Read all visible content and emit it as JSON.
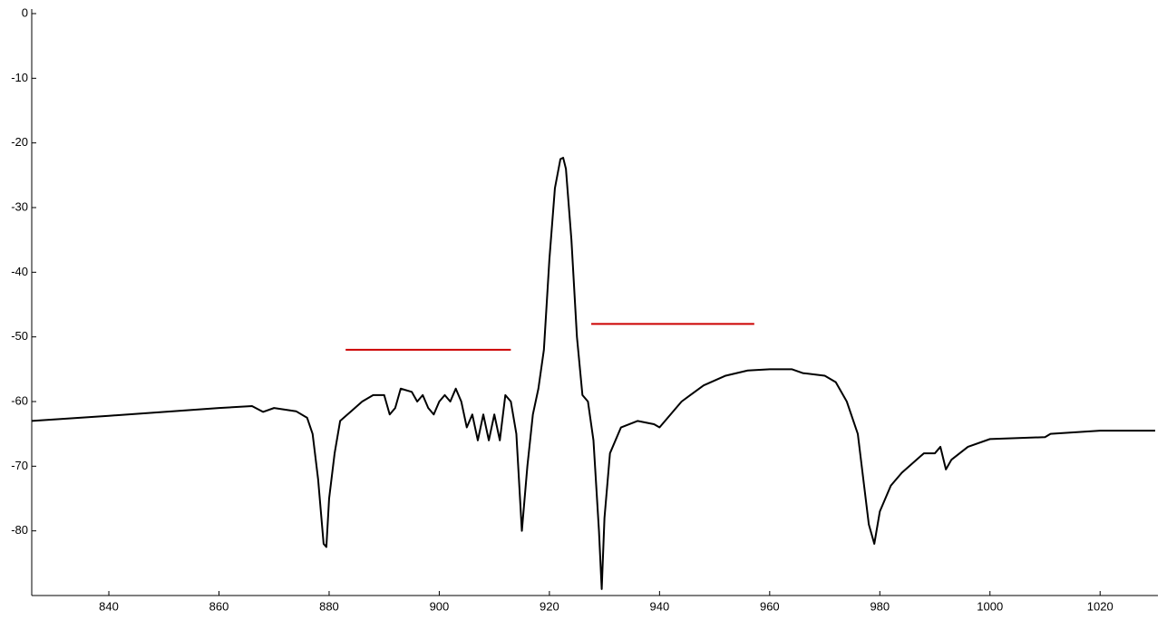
{
  "chart_data": {
    "type": "line",
    "xlim": [
      826,
      1030.5
    ],
    "ylim": [
      -90,
      0
    ],
    "xticks": [
      840,
      860,
      880,
      900,
      920,
      940,
      960,
      980,
      1000,
      1020
    ],
    "yticks": [
      0,
      -10,
      -20,
      -30,
      -40,
      -50,
      -60,
      -70,
      -80
    ],
    "series": [
      {
        "name": null,
        "color": "#000000",
        "x": [
          826,
          840,
          860,
          866,
          868,
          870,
          874,
          876,
          877,
          878,
          879,
          879.5,
          880,
          881,
          882,
          884,
          886,
          888,
          890,
          891,
          892,
          893,
          895,
          896,
          897,
          898,
          899,
          900,
          901,
          902,
          903,
          904,
          905,
          906,
          907,
          908,
          909,
          910,
          911,
          912,
          913,
          914,
          915,
          916,
          917,
          918,
          919,
          920,
          921,
          922,
          922.5,
          923,
          924,
          925,
          926,
          927,
          928,
          929,
          929.5,
          930,
          931,
          933,
          936,
          939,
          940,
          941,
          944,
          948,
          952,
          956,
          960,
          964,
          966,
          970,
          972,
          974,
          976,
          977,
          978,
          979,
          980,
          982,
          984,
          988,
          990,
          991,
          992,
          993,
          996,
          1000,
          1010,
          1011,
          1020,
          1030
        ],
        "values": [
          -63,
          -62.2,
          -61,
          -60.7,
          -61.6,
          -61,
          -61.5,
          -62.5,
          -65,
          -72,
          -82,
          -82.5,
          -75,
          -68,
          -63,
          -61.5,
          -60,
          -59,
          -59,
          -62,
          -61,
          -58,
          -58.5,
          -60,
          -59,
          -61,
          -62,
          -60,
          -59,
          -60,
          -58,
          -60,
          -64,
          -62,
          -66,
          -62,
          -66,
          -62,
          -66,
          -59,
          -60,
          -65,
          -80,
          -70,
          -62,
          -58,
          -52,
          -38,
          -27,
          -22.5,
          -22.3,
          -24,
          -35,
          -50,
          -59,
          -60,
          -66,
          -80,
          -89,
          -78,
          -68,
          -64,
          -63,
          -63.5,
          -64,
          -63,
          -60,
          -57.5,
          -56,
          -55.2,
          -55,
          -55,
          -55.6,
          -56,
          -57,
          -60,
          -65,
          -72,
          -79,
          -82,
          -77,
          -73,
          -71,
          -68,
          -68,
          -67,
          -70.5,
          -69,
          -67,
          -65.8,
          -65.5,
          -65,
          -64.5,
          -64.5
        ]
      },
      {
        "name": null,
        "color": "#cc0000",
        "x": [
          883,
          913
        ],
        "values": [
          -52,
          -52
        ]
      },
      {
        "name": null,
        "color": "#cc0000",
        "x": [
          927.6,
          957.2
        ],
        "values": [
          -48,
          -48
        ]
      }
    ]
  }
}
